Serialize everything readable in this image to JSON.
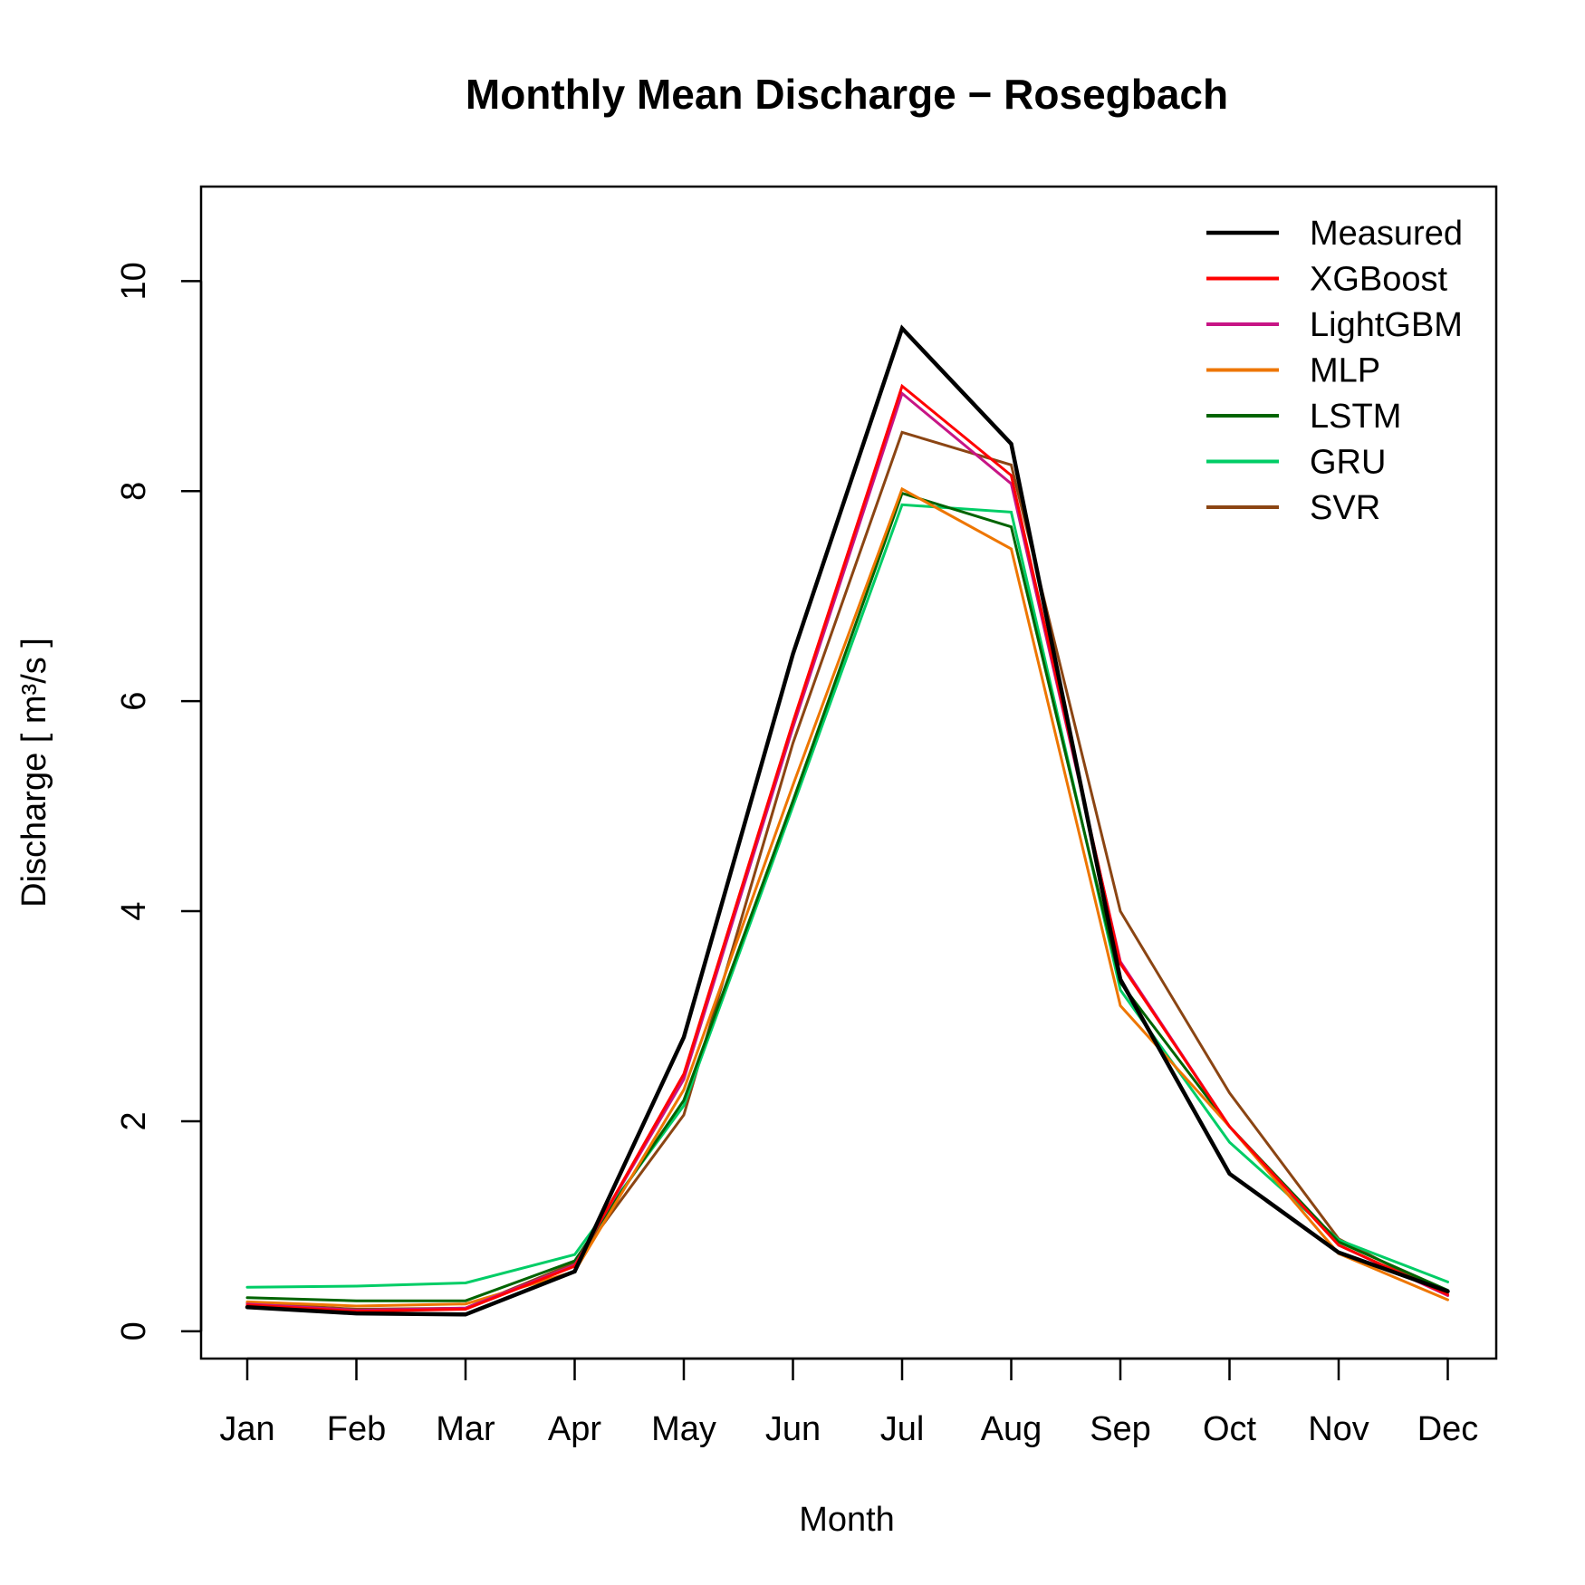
{
  "chart_data": {
    "type": "line",
    "title": "Monthly Mean Discharge − Rosegbach",
    "xlabel": "Month",
    "ylabel": "Discharge [ m³/s ]",
    "categories": [
      "Jan",
      "Feb",
      "Mar",
      "Apr",
      "May",
      "Jun",
      "Jul",
      "Aug",
      "Sep",
      "Oct",
      "Nov",
      "Dec"
    ],
    "yticks": [
      "0",
      "2",
      "4",
      "6",
      "8",
      "10"
    ],
    "ylim": [
      -0.26,
      10.9
    ],
    "grid": false,
    "legend_position": "top-right",
    "series": [
      {
        "name": "Measured",
        "color": "#000000",
        "values": [
          0.23,
          0.17,
          0.16,
          0.57,
          2.8,
          6.45,
          9.55,
          8.45,
          3.35,
          1.5,
          0.75,
          0.38
        ]
      },
      {
        "name": "XGBoost",
        "color": "#ff0000",
        "values": [
          0.25,
          0.19,
          0.21,
          0.62,
          2.45,
          5.8,
          9.0,
          8.15,
          3.5,
          1.95,
          0.82,
          0.35
        ]
      },
      {
        "name": "LightGBM",
        "color": "#c71585",
        "values": [
          0.26,
          0.2,
          0.22,
          0.63,
          2.4,
          5.75,
          8.93,
          8.07,
          3.52,
          1.95,
          0.82,
          0.34
        ]
      },
      {
        "name": "MLP",
        "color": "#ee7600",
        "values": [
          0.28,
          0.24,
          0.26,
          0.57,
          2.3,
          5.2,
          8.02,
          7.45,
          3.1,
          1.95,
          0.74,
          0.3
        ]
      },
      {
        "name": "LSTM",
        "color": "#006400",
        "values": [
          0.32,
          0.29,
          0.29,
          0.67,
          2.2,
          5.05,
          7.98,
          7.66,
          3.32,
          1.95,
          0.85,
          0.39
        ]
      },
      {
        "name": "GRU",
        "color": "#00cd66",
        "values": [
          0.42,
          0.43,
          0.46,
          0.73,
          2.15,
          5.0,
          7.87,
          7.8,
          3.25,
          1.8,
          0.87,
          0.47
        ]
      },
      {
        "name": "SVR",
        "color": "#8b4513",
        "values": [
          0.27,
          0.21,
          0.22,
          0.65,
          2.06,
          5.6,
          8.56,
          8.25,
          4.0,
          2.27,
          0.88,
          0.34
        ]
      }
    ]
  }
}
